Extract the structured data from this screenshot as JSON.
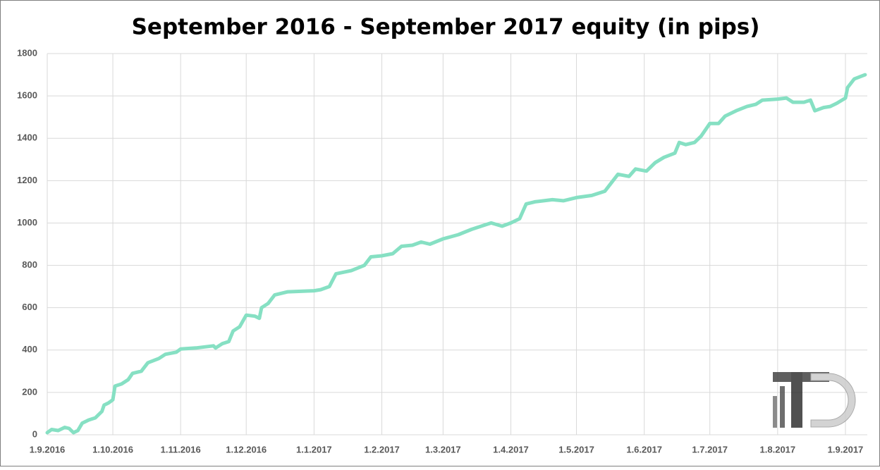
{
  "chart_data": {
    "type": "line",
    "title": "September 2016 - September 2017 equity (in pips)",
    "x": [
      "2016-09-01",
      "2016-09-03",
      "2016-09-06",
      "2016-09-09",
      "2016-09-11",
      "2016-09-13",
      "2016-09-15",
      "2016-09-17",
      "2016-09-20",
      "2016-09-23",
      "2016-09-26",
      "2016-09-27",
      "2016-09-29",
      "2016-10-01",
      "2016-10-02",
      "2016-10-05",
      "2016-10-08",
      "2016-10-10",
      "2016-10-14",
      "2016-10-17",
      "2016-10-22",
      "2016-10-25",
      "2016-10-30",
      "2016-11-01",
      "2016-11-08",
      "2016-11-16",
      "2016-11-17",
      "2016-11-20",
      "2016-11-23",
      "2016-11-25",
      "2016-11-28",
      "2016-12-01",
      "2016-12-05",
      "2016-12-07",
      "2016-12-08",
      "2016-12-11",
      "2016-12-14",
      "2016-12-20",
      "2017-01-01",
      "2017-01-04",
      "2017-01-08",
      "2017-01-11",
      "2017-01-18",
      "2017-01-24",
      "2017-01-27",
      "2017-02-01",
      "2017-02-06",
      "2017-02-10",
      "2017-02-15",
      "2017-02-19",
      "2017-02-23",
      "2017-03-01",
      "2017-03-08",
      "2017-03-14",
      "2017-03-20",
      "2017-03-23",
      "2017-03-28",
      "2017-04-01",
      "2017-04-05",
      "2017-04-08",
      "2017-04-12",
      "2017-04-20",
      "2017-04-25",
      "2017-05-01",
      "2017-05-08",
      "2017-05-14",
      "2017-05-17",
      "2017-05-20",
      "2017-05-25",
      "2017-05-28",
      "2017-06-02",
      "2017-06-06",
      "2017-06-10",
      "2017-06-15",
      "2017-06-17",
      "2017-06-20",
      "2017-06-24",
      "2017-06-27",
      "2017-07-01",
      "2017-07-05",
      "2017-07-08",
      "2017-07-13",
      "2017-07-18",
      "2017-07-22",
      "2017-07-25",
      "2017-08-01",
      "2017-08-05",
      "2017-08-08",
      "2017-08-13",
      "2017-08-16",
      "2017-08-18",
      "2017-08-22",
      "2017-08-25",
      "2017-08-28",
      "2017-09-01",
      "2017-09-02",
      "2017-09-05",
      "2017-09-10"
    ],
    "values": [
      10,
      25,
      20,
      35,
      30,
      10,
      20,
      55,
      70,
      80,
      110,
      140,
      150,
      165,
      230,
      240,
      260,
      290,
      300,
      340,
      360,
      380,
      390,
      405,
      410,
      420,
      410,
      430,
      440,
      490,
      510,
      565,
      560,
      550,
      600,
      620,
      660,
      675,
      680,
      685,
      700,
      760,
      775,
      800,
      840,
      845,
      855,
      890,
      895,
      910,
      900,
      925,
      945,
      970,
      990,
      1000,
      985,
      1000,
      1020,
      1090,
      1100,
      1110,
      1105,
      1120,
      1130,
      1150,
      1190,
      1230,
      1220,
      1255,
      1245,
      1285,
      1310,
      1330,
      1380,
      1370,
      1380,
      1410,
      1470,
      1470,
      1505,
      1530,
      1550,
      1560,
      1580,
      1585,
      1590,
      1570,
      1570,
      1580,
      1530,
      1545,
      1550,
      1565,
      1590,
      1640,
      1680,
      1700
    ],
    "color": "#86e0c3",
    "xlim": [
      "2016-09-01",
      "2017-09-11"
    ],
    "xticks": [
      {
        "value": "2016-09-01",
        "label": "1.9.2016"
      },
      {
        "value": "2016-10-01",
        "label": "1.10.2016"
      },
      {
        "value": "2016-11-01",
        "label": "1.11.2016"
      },
      {
        "value": "2016-12-01",
        "label": "1.12.2016"
      },
      {
        "value": "2017-01-01",
        "label": "1.1.2017"
      },
      {
        "value": "2017-02-01",
        "label": "1.2.2017"
      },
      {
        "value": "2017-03-01",
        "label": "1.3.2017"
      },
      {
        "value": "2017-04-01",
        "label": "1.4.2017"
      },
      {
        "value": "2017-05-01",
        "label": "1.5.2017"
      },
      {
        "value": "2017-06-01",
        "label": "1.6.2017"
      },
      {
        "value": "2017-07-01",
        "label": "1.7.2017"
      },
      {
        "value": "2017-08-01",
        "label": "1.8.2017"
      },
      {
        "value": "2017-09-01",
        "label": "1.9.2017"
      }
    ],
    "ylim": [
      0,
      1800
    ],
    "yticks": [
      0,
      200,
      400,
      600,
      800,
      1000,
      1200,
      1400,
      1600,
      1800
    ],
    "grid": true
  }
}
